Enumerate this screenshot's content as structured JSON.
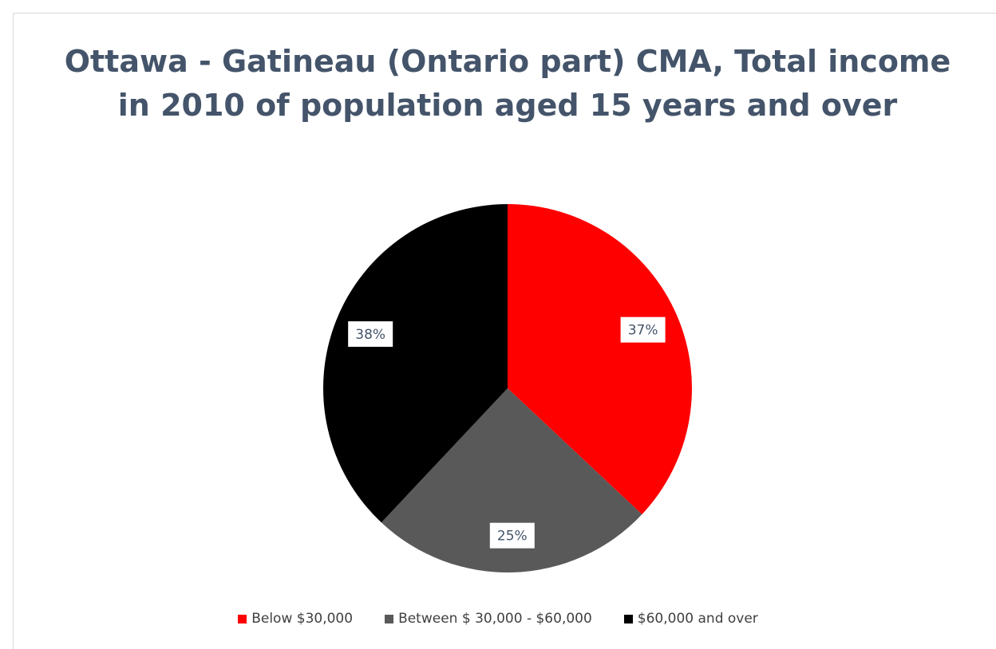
{
  "chart_data": {
    "type": "pie",
    "title": "Ottawa - Gatineau (Ontario part) CMA, Total income in 2010 of population aged 15 years and over",
    "categories": [
      "Below $30,000",
      "Between $ 30,000 - $60,000",
      "$60,000 and over"
    ],
    "values": [
      37,
      25,
      38
    ],
    "data_labels": [
      "37%",
      "25%",
      "38%"
    ],
    "colors": [
      "#ff0000",
      "#595959",
      "#000000"
    ],
    "legend": "bottom"
  }
}
